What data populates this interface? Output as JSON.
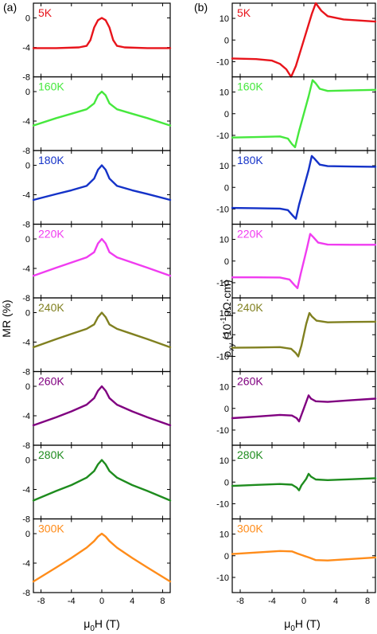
{
  "panels": [
    {
      "label": "(a)",
      "xlabel_main": "μ",
      "xlabel_sub": "0",
      "xlabel_rest": "H (T)",
      "ylabel": "MR (%)",
      "ylabel_lines": [],
      "xticks": [
        -8,
        -4,
        0,
        4,
        8
      ],
      "xlim": [
        -9,
        9
      ]
    },
    {
      "label": "(b)",
      "xlabel_main": "μ",
      "xlabel_sub": "0",
      "xlabel_rest": "H (T)",
      "ylabel_lines": [
        "ρ",
        "xy",
        " (10",
        "-1",
        "μΩ·cm)"
      ],
      "xticks": [
        -8,
        -4,
        0,
        4,
        8
      ],
      "xlim": [
        -9,
        9
      ]
    }
  ],
  "chart_data": [
    {
      "type": "line",
      "panel": "(a)",
      "title": "",
      "xlabel": "μ0H (T)",
      "ylabel": "MR (%)",
      "x_ticks": [
        -8,
        -4,
        0,
        4,
        8
      ],
      "y_ticks": [
        0,
        -4,
        -8
      ],
      "ylim": [
        -8,
        2
      ],
      "series": [
        {
          "name": "5K",
          "color": "#e8141b",
          "x": [
            -9,
            -6,
            -3,
            -2,
            -1.5,
            -1,
            -0.5,
            0,
            0.5,
            1,
            1.5,
            2,
            3,
            6,
            9
          ],
          "y": [
            -4.1,
            -4.1,
            -4.0,
            -3.8,
            -3.0,
            -1.3,
            -0.3,
            0,
            -0.3,
            -1.3,
            -3.0,
            -3.8,
            -4.0,
            -4.1,
            -4.1
          ]
        },
        {
          "name": "160K",
          "color": "#46e83d",
          "x": [
            -9,
            -6,
            -4,
            -2,
            -1,
            -0.5,
            0,
            0.5,
            1,
            2,
            4,
            6,
            9
          ],
          "y": [
            -4.6,
            -3.6,
            -3.0,
            -2.4,
            -1.6,
            -0.5,
            0,
            -0.5,
            -1.6,
            -2.4,
            -3.0,
            -3.6,
            -4.6
          ]
        },
        {
          "name": "180K",
          "color": "#1432c8",
          "x": [
            -9,
            -6,
            -4,
            -2,
            -1,
            -0.5,
            0,
            0.5,
            1,
            2,
            4,
            6,
            9
          ],
          "y": [
            -4.7,
            -3.9,
            -3.4,
            -2.8,
            -1.8,
            -0.6,
            0,
            -0.6,
            -1.8,
            -2.8,
            -3.4,
            -3.9,
            -4.7
          ]
        },
        {
          "name": "220K",
          "color": "#f03cf0",
          "x": [
            -9,
            -6,
            -4,
            -2,
            -1,
            -0.5,
            0,
            0.5,
            1,
            2,
            4,
            6,
            9
          ],
          "y": [
            -5.0,
            -3.9,
            -3.2,
            -2.5,
            -1.8,
            -0.6,
            0,
            -0.6,
            -1.8,
            -2.5,
            -3.2,
            -3.9,
            -5.0
          ]
        },
        {
          "name": "240K",
          "color": "#808020",
          "x": [
            -9,
            -6,
            -4,
            -2,
            -1,
            -0.5,
            0,
            0.5,
            1,
            2,
            4,
            6,
            9
          ],
          "y": [
            -4.7,
            -3.6,
            -2.9,
            -2.2,
            -1.6,
            -0.6,
            0,
            -0.6,
            -1.6,
            -2.2,
            -2.9,
            -3.6,
            -4.7
          ]
        },
        {
          "name": "260K",
          "color": "#800080",
          "x": [
            -9,
            -6,
            -4,
            -2,
            -1,
            -0.5,
            0,
            0.5,
            1,
            2,
            4,
            6,
            9
          ],
          "y": [
            -5.3,
            -4.2,
            -3.4,
            -2.5,
            -1.6,
            -0.6,
            0,
            -0.6,
            -1.6,
            -2.5,
            -3.4,
            -4.2,
            -5.3
          ]
        },
        {
          "name": "280K",
          "color": "#1e8c1e",
          "x": [
            -9,
            -6,
            -4,
            -2,
            -1,
            -0.5,
            0,
            0.5,
            1,
            2,
            4,
            6,
            9
          ],
          "y": [
            -5.5,
            -4.2,
            -3.4,
            -2.4,
            -1.5,
            -0.6,
            0,
            -0.6,
            -1.5,
            -2.4,
            -3.4,
            -4.2,
            -5.5
          ]
        },
        {
          "name": "300K",
          "color": "#ff8c1a",
          "x": [
            -9,
            -6,
            -4,
            -2,
            -1,
            -0.5,
            0,
            0.5,
            1,
            2,
            4,
            6,
            9
          ],
          "y": [
            -6.5,
            -4.6,
            -3.3,
            -1.9,
            -1.0,
            -0.4,
            0,
            -0.4,
            -1.0,
            -1.9,
            -3.3,
            -4.6,
            -6.5
          ]
        }
      ]
    },
    {
      "type": "line",
      "panel": "(b)",
      "title": "",
      "xlabel": "μ0H (T)",
      "ylabel": "ρxy (10^-1 μΩ·cm)",
      "x_ticks": [
        -8,
        -4,
        0,
        4,
        8
      ],
      "y_ticks": [
        10,
        0,
        -10
      ],
      "ylim": [
        -17,
        17
      ],
      "series": [
        {
          "name": "5K",
          "color": "#e8141b",
          "x": [
            -9,
            -6,
            -4,
            -3,
            -2.2,
            -1.6,
            -1.0,
            0,
            1.0,
            1.5,
            2.2,
            3,
            5,
            9
          ],
          "y": [
            -8.5,
            -8.8,
            -9.5,
            -11,
            -13.5,
            -17,
            -12,
            0,
            12,
            17,
            13.5,
            11,
            9.5,
            8.5
          ]
        },
        {
          "name": "160K",
          "color": "#46e83d",
          "x": [
            -9,
            -6,
            -3,
            -2,
            -1.5,
            -1.1,
            -0.6,
            0,
            0.6,
            1.1,
            1.5,
            2,
            3,
            6,
            9
          ],
          "y": [
            -11,
            -10.8,
            -10.5,
            -11.5,
            -14,
            -15.5,
            -8,
            0,
            8,
            15.5,
            14,
            11.5,
            10.5,
            10.8,
            11
          ]
        },
        {
          "name": "180K",
          "color": "#1432c8",
          "x": [
            -9,
            -6,
            -3,
            -2,
            -1.4,
            -1.0,
            -0.6,
            0,
            0.6,
            1.0,
            1.4,
            2,
            3,
            6,
            9
          ],
          "y": [
            -9.5,
            -9.6,
            -9.8,
            -10.5,
            -13,
            -14.5,
            -8,
            0,
            8,
            14.5,
            13,
            10.5,
            9.8,
            9.6,
            9.5
          ]
        },
        {
          "name": "220K",
          "color": "#f03cf0",
          "x": [
            -9,
            -6,
            -3,
            -1.8,
            -1.2,
            -0.8,
            -0.4,
            0,
            0.4,
            0.8,
            1.2,
            1.8,
            3,
            6,
            9
          ],
          "y": [
            -7.5,
            -7.5,
            -7.6,
            -8.5,
            -11,
            -12.5,
            -6,
            0,
            6,
            12.5,
            11,
            8.5,
            7.6,
            7.5,
            7.5
          ]
        },
        {
          "name": "240K",
          "color": "#808020",
          "x": [
            -9,
            -6,
            -3,
            -1.6,
            -1.0,
            -0.7,
            -0.3,
            0,
            0.3,
            0.7,
            1.0,
            1.6,
            3,
            6,
            9
          ],
          "y": [
            -6.0,
            -5.9,
            -5.7,
            -6.5,
            -8.5,
            -10,
            -5,
            0,
            5,
            10,
            8.5,
            6.5,
            5.7,
            5.9,
            6.0
          ]
        },
        {
          "name": "260K",
          "color": "#800080",
          "x": [
            -9,
            -6,
            -3,
            -1.5,
            -0.9,
            -0.6,
            -0.3,
            0,
            0.3,
            0.6,
            0.9,
            1.5,
            3,
            6,
            9
          ],
          "y": [
            -4.5,
            -3.8,
            -3.0,
            -3.3,
            -4.5,
            -6,
            -3,
            0,
            3,
            6,
            4.5,
            3.3,
            3.0,
            3.8,
            4.5
          ]
        },
        {
          "name": "280K",
          "color": "#1e8c1e",
          "x": [
            -9,
            -6,
            -3,
            -1.5,
            -0.9,
            -0.6,
            -0.3,
            0,
            0.3,
            0.6,
            0.9,
            1.5,
            3,
            6,
            9
          ],
          "y": [
            -1.8,
            -1.3,
            -0.9,
            -1.2,
            -2.5,
            -3.8,
            -1.5,
            0,
            1.5,
            3.8,
            2.5,
            1.2,
            0.9,
            1.3,
            1.8
          ]
        },
        {
          "name": "300K",
          "color": "#ff8c1a",
          "x": [
            -9,
            -6,
            -3,
            -1.5,
            -0.8,
            -0.4,
            0,
            0.4,
            0.8,
            1.5,
            3,
            6,
            9
          ],
          "y": [
            0.8,
            1.5,
            2.2,
            2.0,
            1.0,
            0.5,
            0,
            -0.5,
            -1.0,
            -2.0,
            -2.2,
            -1.5,
            -0.8
          ]
        }
      ]
    }
  ]
}
